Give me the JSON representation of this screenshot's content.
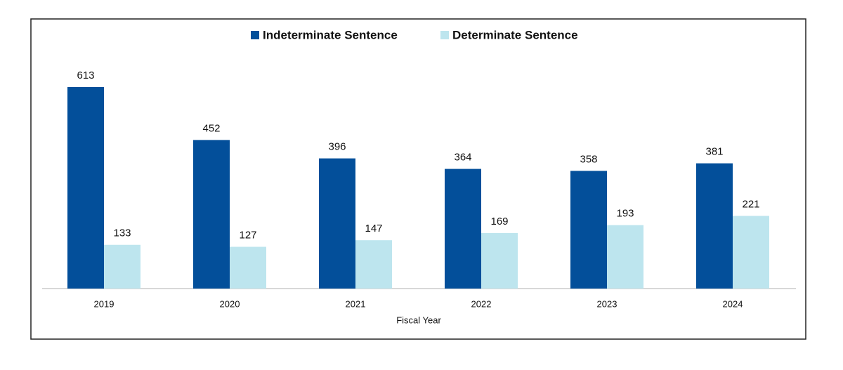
{
  "chart_data": {
    "type": "bar",
    "x_label": "Fiscal Year",
    "categories": [
      "2019",
      "2020",
      "2021",
      "2022",
      "2023",
      "2024"
    ],
    "series": [
      {
        "name": "Indeterminate Sentence",
        "color": "#034f9a",
        "values": [
          613,
          452,
          396,
          364,
          358,
          381
        ]
      },
      {
        "name": "Determinate Sentence",
        "color": "#bde5ee",
        "values": [
          133,
          127,
          147,
          169,
          193,
          221
        ]
      }
    ],
    "legend": "top"
  }
}
